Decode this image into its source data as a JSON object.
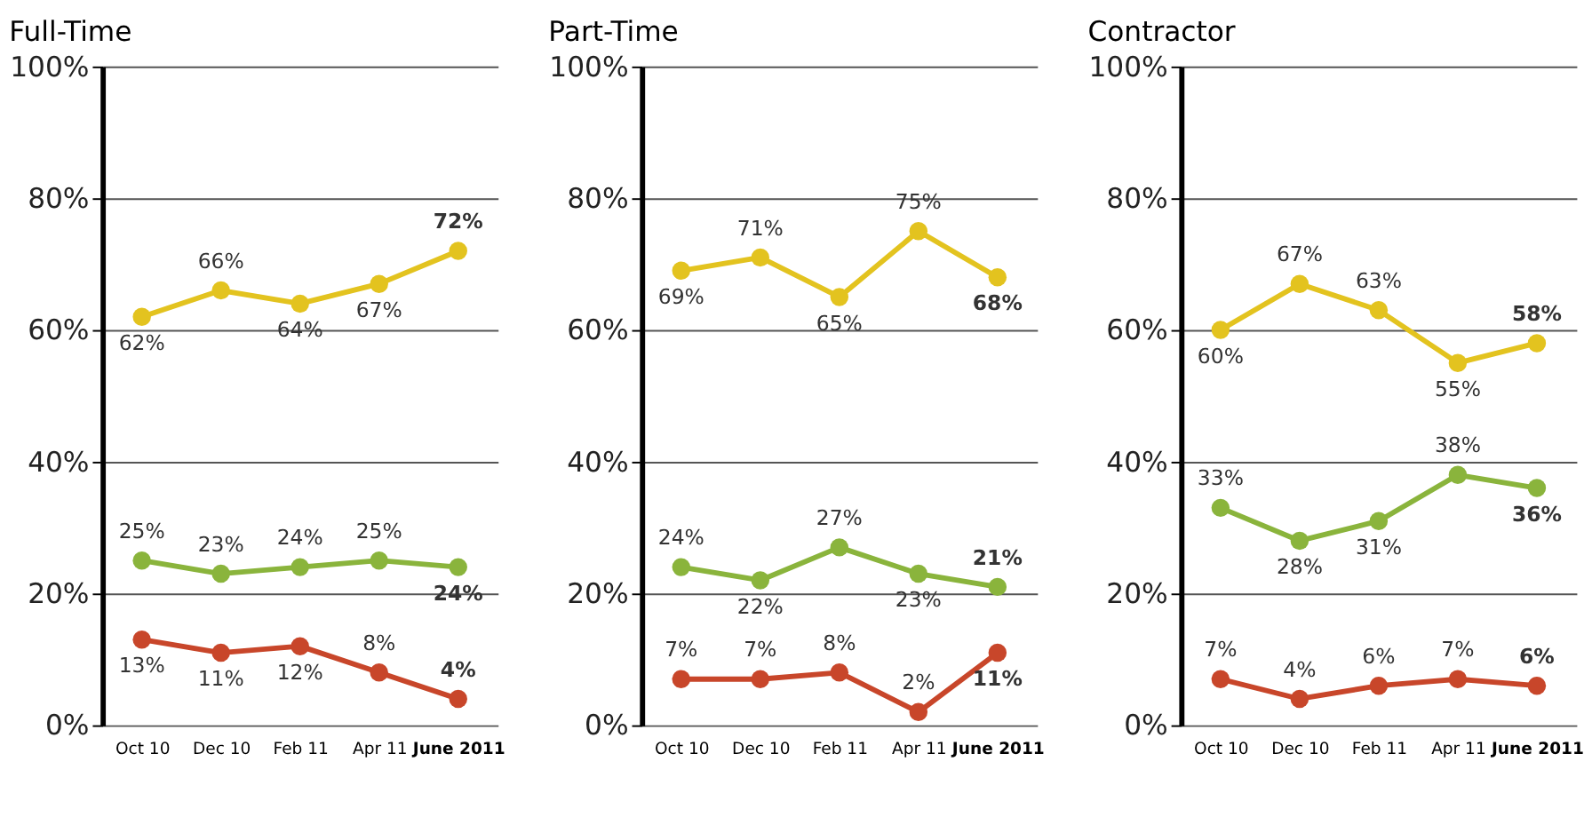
{
  "chart_data": [
    {
      "type": "line",
      "title": "Full-Time",
      "categories": [
        "Oct 10",
        "Dec 10",
        "Feb 11",
        "Apr 11",
        "June 2011"
      ],
      "ylim": [
        0,
        100
      ],
      "yticks": [
        {
          "value": 0,
          "label": "0%"
        },
        {
          "value": 20,
          "label": "20%"
        },
        {
          "value": 40,
          "label": "40%"
        },
        {
          "value": 60,
          "label": "60%"
        },
        {
          "value": 80,
          "label": "80%"
        },
        {
          "value": 100,
          "label": "100%"
        }
      ],
      "grid": "y",
      "marker": "circle",
      "line_style": "solid",
      "legend": false,
      "series": [
        {
          "color": "#e3c31f",
          "values": [
            62,
            66,
            64,
            67,
            72
          ],
          "value_labels": [
            "62%",
            "66%",
            "64%",
            "67%",
            "72%"
          ]
        },
        {
          "color": "#8ab43c",
          "values": [
            25,
            23,
            24,
            25,
            24
          ],
          "value_labels": [
            "25%",
            "23%",
            "24%",
            "25%",
            "24%"
          ]
        },
        {
          "color": "#c8462a",
          "values": [
            13,
            11,
            12,
            8,
            4
          ],
          "value_labels": [
            "13%",
            "11%",
            "12%",
            "8%",
            "4%"
          ]
        }
      ]
    },
    {
      "type": "line",
      "title": "Part-Time",
      "categories": [
        "Oct 10",
        "Dec 10",
        "Feb 11",
        "Apr 11",
        "June 2011"
      ],
      "ylim": [
        0,
        100
      ],
      "yticks": [
        {
          "value": 0,
          "label": "0%"
        },
        {
          "value": 20,
          "label": "20%"
        },
        {
          "value": 40,
          "label": "40%"
        },
        {
          "value": 60,
          "label": "60%"
        },
        {
          "value": 80,
          "label": "80%"
        },
        {
          "value": 100,
          "label": "100%"
        }
      ],
      "grid": "y",
      "marker": "circle",
      "line_style": "solid",
      "legend": false,
      "series": [
        {
          "color": "#e3c31f",
          "values": [
            69,
            71,
            65,
            75,
            68
          ],
          "value_labels": [
            "69%",
            "71%",
            "65%",
            "75%",
            "68%"
          ]
        },
        {
          "color": "#8ab43c",
          "values": [
            24,
            22,
            27,
            23,
            21
          ],
          "value_labels": [
            "24%",
            "22%",
            "27%",
            "23%",
            "21%"
          ]
        },
        {
          "color": "#c8462a",
          "values": [
            7,
            7,
            8,
            2,
            11
          ],
          "value_labels": [
            "7%",
            "7%",
            "8%",
            "2%",
            "11%"
          ]
        }
      ]
    },
    {
      "type": "line",
      "title": "Contractor",
      "categories": [
        "Oct 10",
        "Dec 10",
        "Feb 11",
        "Apr 11",
        "June 2011"
      ],
      "ylim": [
        0,
        100
      ],
      "yticks": [
        {
          "value": 0,
          "label": "0%"
        },
        {
          "value": 20,
          "label": "20%"
        },
        {
          "value": 40,
          "label": "40%"
        },
        {
          "value": 60,
          "label": "60%"
        },
        {
          "value": 80,
          "label": "80%"
        },
        {
          "value": 100,
          "label": "100%"
        }
      ],
      "grid": "y",
      "marker": "circle",
      "line_style": "solid",
      "legend": false,
      "series": [
        {
          "color": "#e3c31f",
          "values": [
            60,
            67,
            63,
            55,
            58
          ],
          "value_labels": [
            "60%",
            "67%",
            "63%",
            "55%",
            "58%"
          ]
        },
        {
          "color": "#8ab43c",
          "values": [
            33,
            28,
            31,
            38,
            36
          ],
          "value_labels": [
            "33%",
            "28%",
            "31%",
            "38%",
            "36%"
          ]
        },
        {
          "color": "#c8462a",
          "values": [
            7,
            4,
            6,
            7,
            6
          ],
          "value_labels": [
            "7%",
            "4%",
            "6%",
            "7%",
            "6%"
          ]
        }
      ]
    }
  ]
}
